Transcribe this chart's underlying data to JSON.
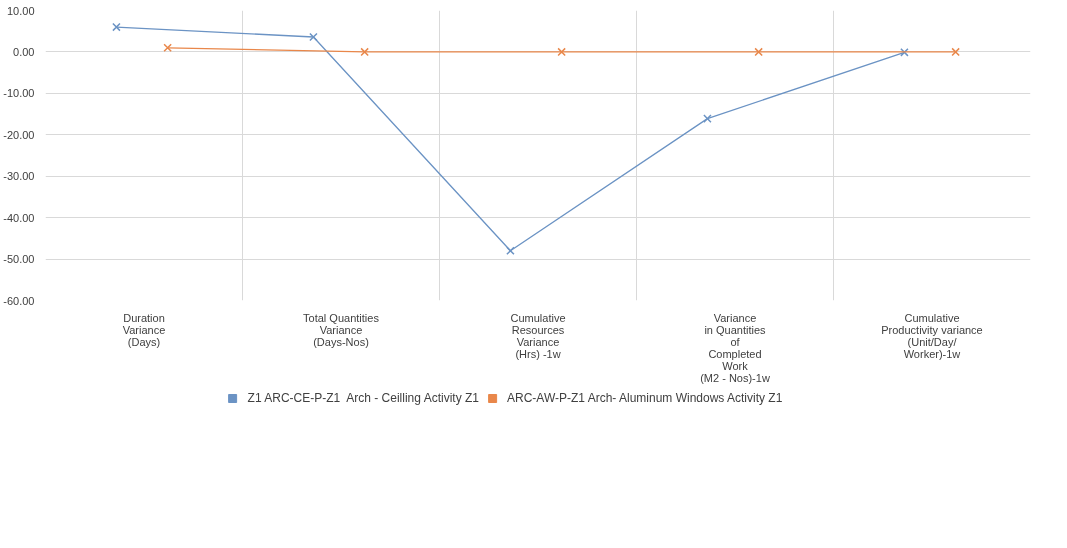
{
  "chart_data": {
    "type": "line",
    "categories": [
      "Duration\nVariance\n(Days)",
      "Total Quantities\nVariance\n(Days-Nos)",
      "Cumulative\nResources\nVariance\n(Hrs) -1w",
      "Variance\nin Quantities\nof\nCompleted\nWork\n(M2 - Nos)-1w",
      "Cumulative\nProductivity variance\n(Unit/Day/\nWorker)-1w"
    ],
    "series": [
      {
        "name": "Z1 ARC-CE-P-Z1  Arch - Ceilling Activity Z1",
        "color": "#6b93c4",
        "values": [
          6,
          3.6,
          -48,
          -16.1,
          -0.1
        ]
      },
      {
        "name": "ARC-AW-P-Z1 Arch- Aluminum Windows Activity Z1",
        "color": "#e9874a",
        "values": [
          1,
          0,
          0,
          0,
          0
        ]
      }
    ],
    "ylim": [
      -60,
      10
    ],
    "yticks": [
      {
        "value": 10,
        "label": "10.00"
      },
      {
        "value": 0,
        "label": "0.00"
      },
      {
        "value": -10,
        "label": "-10.00"
      },
      {
        "value": -20,
        "label": "-20.00"
      },
      {
        "value": -30,
        "label": "-30.00"
      },
      {
        "value": -40,
        "label": "-40.00"
      },
      {
        "value": -50,
        "label": "-50.00"
      },
      {
        "value": -60,
        "label": "-60.00"
      }
    ],
    "grid": true,
    "legend": "bottom",
    "marker": "cross",
    "line_style": "solid"
  }
}
